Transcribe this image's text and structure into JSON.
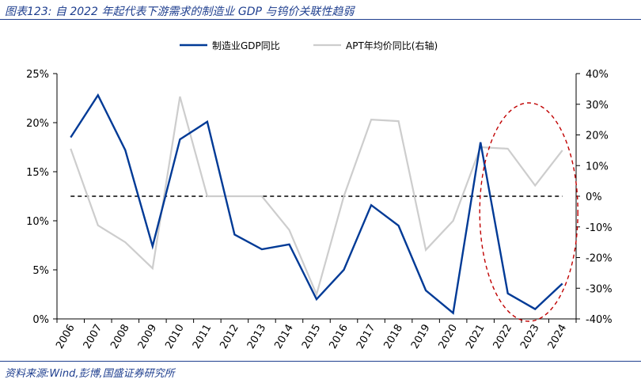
{
  "title": "图表123:  自 2022 年起代表下游需求的制造业 GDP 与钨价关联性趋弱",
  "source": "资料来源:Wind,彭博,国盛证券研究所",
  "colors": {
    "gdp": "#003a96",
    "apt": "#cdcdcd",
    "zero_line": "#000000",
    "highlight_ellipse": "#c00000",
    "title_text": "#1f3f8f"
  },
  "chart_data": {
    "type": "line",
    "x": [
      "2006",
      "2007",
      "2008",
      "2009",
      "2010",
      "2011",
      "2012",
      "2013",
      "2014",
      "2015",
      "2016",
      "2017",
      "2018",
      "2019",
      "2020",
      "2021",
      "2022",
      "2023",
      "2024"
    ],
    "y_left_ticks": [
      "0%",
      "5%",
      "10%",
      "15%",
      "20%",
      "25%"
    ],
    "y_right_ticks": [
      "-40%",
      "-30%",
      "-20%",
      "-10%",
      "0%",
      "10%",
      "20%",
      "30%",
      "40%"
    ],
    "ylim_left": [
      0,
      25
    ],
    "ylim_right": [
      -40,
      40
    ],
    "series": [
      {
        "name": "制造业GDP同比",
        "axis": "left",
        "values": [
          18.5,
          22.8,
          17.2,
          7.4,
          18.3,
          20.1,
          8.6,
          7.1,
          7.6,
          2.0,
          5.0,
          11.6,
          9.5,
          2.9,
          0.6,
          18.0,
          2.6,
          1.0,
          3.6
        ]
      },
      {
        "name": "APT年均价同比(右轴)",
        "axis": "right",
        "values": [
          15.5,
          -9.5,
          -15.0,
          -23.5,
          32.5,
          0.0,
          0.0,
          0.0,
          -11.0,
          -32.0,
          0.0,
          25.0,
          24.5,
          -17.5,
          -8.0,
          16.0,
          15.5,
          3.5,
          15.0
        ]
      }
    ],
    "reference_line": {
      "axis": "right",
      "value": 0,
      "style": "dashed"
    },
    "highlight": {
      "shape": "ellipse",
      "covers": [
        "2022",
        "2023",
        "2024"
      ],
      "style": "dashed"
    },
    "legend_position": "top-center",
    "grid": false
  }
}
